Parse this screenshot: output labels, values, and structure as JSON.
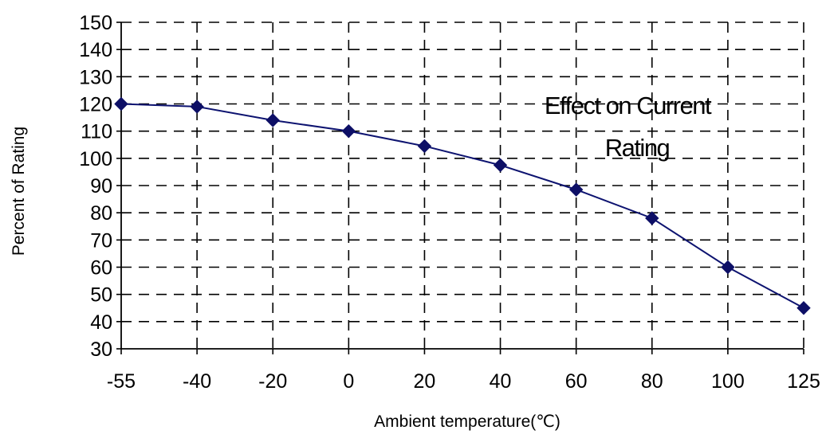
{
  "chart_data": {
    "type": "line",
    "title": "",
    "xlabel": "Ambient temperature(℃)",
    "ylabel": "Percent of Rating",
    "annotation": [
      "Effect on Current",
      "Rating"
    ],
    "categories": [
      "-55",
      "-40",
      "-20",
      "0",
      "20",
      "40",
      "60",
      "80",
      "100",
      "125"
    ],
    "series": [
      {
        "values": [
          120,
          119,
          114,
          110,
          104.5,
          97.5,
          88.5,
          78,
          60,
          45
        ]
      }
    ],
    "ylim": [
      30,
      150
    ],
    "yticks": [
      "30",
      "40",
      "50",
      "60",
      "70",
      "80",
      "90",
      "100",
      "110",
      "120",
      "130",
      "140",
      "150"
    ],
    "grid": true,
    "legend": "none",
    "colors": {
      "series": "#0d1370",
      "marker": "#0d0f66",
      "grid": "#000000",
      "axis": "#000000"
    }
  }
}
